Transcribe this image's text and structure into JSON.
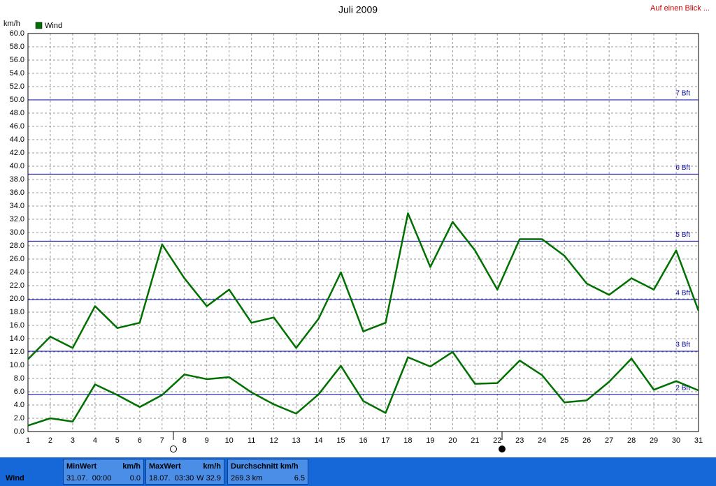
{
  "header": {
    "link": "Auf einen Blick ..."
  },
  "chart_data": {
    "type": "line",
    "title": "Juli 2009",
    "y_label": "km/h",
    "x": [
      1,
      2,
      3,
      4,
      5,
      6,
      7,
      8,
      9,
      10,
      11,
      12,
      13,
      14,
      15,
      16,
      17,
      18,
      19,
      20,
      21,
      22,
      23,
      24,
      25,
      26,
      27,
      28,
      29,
      30,
      31
    ],
    "xlim": [
      1,
      31
    ],
    "series": [
      {
        "name": "Wind",
        "color": "#007000",
        "values": [
          10.9,
          14.3,
          12.6,
          18.9,
          15.6,
          16.4,
          28.2,
          23.1,
          18.9,
          21.4,
          16.4,
          17.2,
          12.6,
          17.0,
          24.0,
          15.1,
          16.4,
          32.9,
          24.8,
          31.6,
          27.3,
          21.4,
          29.0,
          29.0,
          26.5,
          22.3,
          20.6,
          23.1,
          21.4,
          27.3,
          18.2
        ]
      },
      {
        "color": "#007000",
        "values": [
          0.9,
          2.0,
          1.5,
          7.1,
          5.5,
          3.7,
          5.5,
          8.6,
          7.9,
          8.2,
          5.9,
          4.1,
          2.7,
          5.6,
          9.9,
          4.6,
          2.8,
          11.2,
          9.8,
          12.0,
          7.2,
          7.3,
          10.7,
          8.5,
          4.4,
          4.7,
          7.5,
          11.0,
          6.3,
          7.6,
          6.2
        ]
      }
    ],
    "reference_lines": [
      {
        "value": 5.6,
        "label": "2 Bft"
      },
      {
        "value": 12.1,
        "label": "3 Bft"
      },
      {
        "value": 19.9,
        "label": "4 Bft"
      },
      {
        "value": 28.7,
        "label": "5 Bft"
      },
      {
        "value": 38.8,
        "label": "6 Bft"
      },
      {
        "value": 50.0,
        "label": "7 Bft"
      }
    ],
    "reference_color": "#0000a0",
    "ylim": [
      0,
      60
    ],
    "yticks": [
      {
        "value": 0,
        "label": "0.0"
      },
      {
        "value": 2,
        "label": "2.0"
      },
      {
        "value": 4,
        "label": "4.0"
      },
      {
        "value": 6,
        "label": "6.0"
      },
      {
        "value": 8,
        "label": "8.0"
      },
      {
        "value": 10,
        "label": "10.0"
      },
      {
        "value": 12,
        "label": "12.0"
      },
      {
        "value": 14,
        "label": "14.0"
      },
      {
        "value": 16,
        "label": "16.0"
      },
      {
        "value": 18,
        "label": "18.0"
      },
      {
        "value": 20,
        "label": "20.0"
      },
      {
        "value": 22,
        "label": "22.0"
      },
      {
        "value": 24,
        "label": "24.0"
      },
      {
        "value": 26,
        "label": "26.0"
      },
      {
        "value": 28,
        "label": "28.0"
      },
      {
        "value": 30,
        "label": "30.0"
      },
      {
        "value": 32,
        "label": "32.0"
      },
      {
        "value": 34,
        "label": "34.0"
      },
      {
        "value": 36,
        "label": "36.0"
      },
      {
        "value": 38,
        "label": "38.0"
      },
      {
        "value": 40,
        "label": "40.0"
      },
      {
        "value": 42,
        "label": "42.0"
      },
      {
        "value": 44,
        "label": "44.0"
      },
      {
        "value": 46,
        "label": "46.0"
      },
      {
        "value": 48,
        "label": "48.0"
      },
      {
        "value": 50,
        "label": "50.0"
      },
      {
        "value": 52,
        "label": "52.0"
      },
      {
        "value": 54,
        "label": "54.0"
      },
      {
        "value": 56,
        "label": "56.0"
      },
      {
        "value": 58,
        "label": "58.0"
      },
      {
        "value": 60,
        "label": "60.0"
      }
    ],
    "grid": true
  },
  "footer": {
    "label": "Wind",
    "min": {
      "title": "MinWert",
      "unit": "km/h",
      "date": "31.07.  00:00",
      "value": "0.0"
    },
    "max": {
      "title": "MaxWert",
      "unit": "km/h",
      "date": "18.07.  03:30",
      "value": "W 32.9"
    },
    "avg": {
      "title": "Durchschnitt km/h",
      "total": "269.3 km",
      "value": "6.5"
    }
  }
}
